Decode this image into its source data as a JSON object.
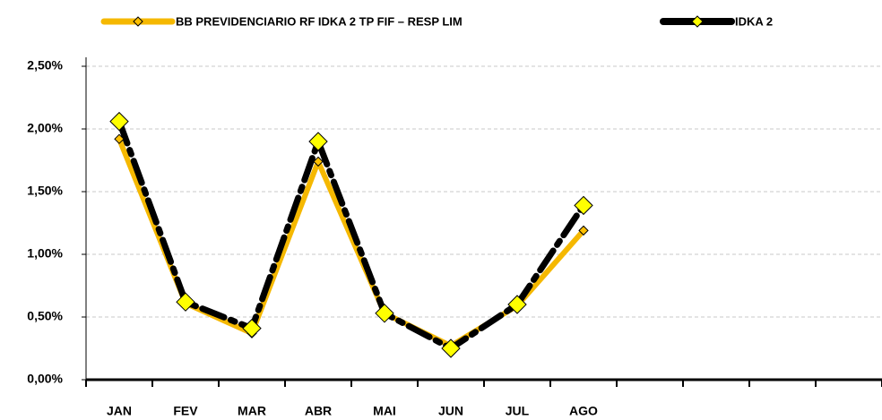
{
  "chart_data": {
    "type": "line",
    "categories": [
      "JAN",
      "FEV",
      "MAR",
      "ABR",
      "MAI",
      "JUN",
      "JUL",
      "AGO",
      null,
      null,
      null,
      null
    ],
    "series": [
      {
        "name": "BB PREVIDENCIARIO RF IDKA 2 TP FIF – RESP LIM",
        "color": "#f5b800",
        "marker_color": "#ffc000",
        "values": [
          1.92,
          0.61,
          0.37,
          1.74,
          0.53,
          0.27,
          0.59,
          1.19,
          null,
          null,
          null,
          null
        ]
      },
      {
        "name": "IDKA 2",
        "color": "#000000",
        "marker_color": "#ffff00",
        "values": [
          2.06,
          0.62,
          0.41,
          1.9,
          0.53,
          0.25,
          0.6,
          1.39,
          null,
          null,
          null,
          null
        ]
      }
    ],
    "ylim": [
      0,
      2.5
    ],
    "yticks": [
      {
        "value": 0,
        "label": "0,00%"
      },
      {
        "value": 0.5,
        "label": "0,50%"
      },
      {
        "value": 1,
        "label": "1,00%"
      },
      {
        "value": 1.5,
        "label": "1,50%"
      },
      {
        "value": 2,
        "label": "2,00%"
      },
      {
        "value": 2.5,
        "label": "2,50%"
      }
    ],
    "grid": true
  }
}
